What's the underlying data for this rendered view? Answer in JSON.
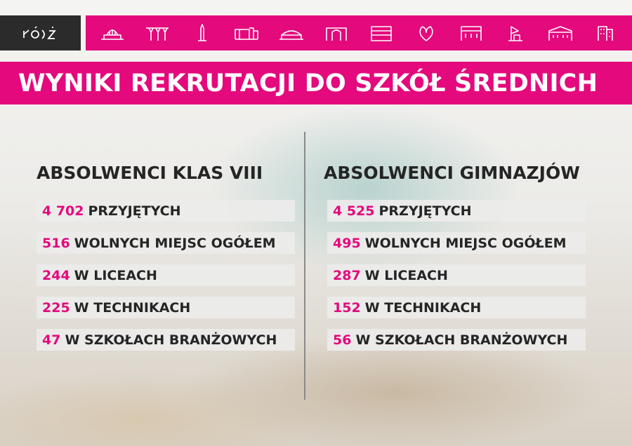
{
  "header": {
    "logo_text": "ŁÓDŹ",
    "icons": [
      "railway-station-icon",
      "concrete-umbrellas-icon",
      "monument-icon",
      "factory-building-icon",
      "arena-icon",
      "gate-building-icon",
      "office-building-icon",
      "heart-leaf-icon",
      "palace-icon",
      "ship-sculpture-icon",
      "townhouse-icon",
      "tower-block-icon"
    ]
  },
  "title": "WYNIKI REKRUTACJI DO SZKÓŁ ŚREDNICH",
  "colors": {
    "accent": "#e4097c",
    "dark": "#2b2b2b"
  },
  "columns": [
    {
      "heading": "ABSOLWENCI KLAS VIII",
      "rows": [
        {
          "value": "4 702",
          "label": "PRZYJĘTYCH"
        },
        {
          "value": "516",
          "label": "WOLNYCH MIEJSC OGÓŁEM"
        },
        {
          "value": "244",
          "label": "W LICEACH"
        },
        {
          "value": "225",
          "label": "W TECHNIKACH"
        },
        {
          "value": "47",
          "label": "W SZKOŁACH BRANŻOWYCH"
        }
      ]
    },
    {
      "heading": "ABSOLWENCI GIMNAZJÓW",
      "rows": [
        {
          "value": "4 525",
          "label": "PRZYJĘTYCH"
        },
        {
          "value": "495",
          "label": "WOLNYCH MIEJSC OGÓŁEM"
        },
        {
          "value": "287",
          "label": "W LICEACH"
        },
        {
          "value": "152",
          "label": "W TECHNIKACH"
        },
        {
          "value": "56",
          "label": "W SZKOŁACH BRANŻOWYCH"
        }
      ]
    }
  ]
}
